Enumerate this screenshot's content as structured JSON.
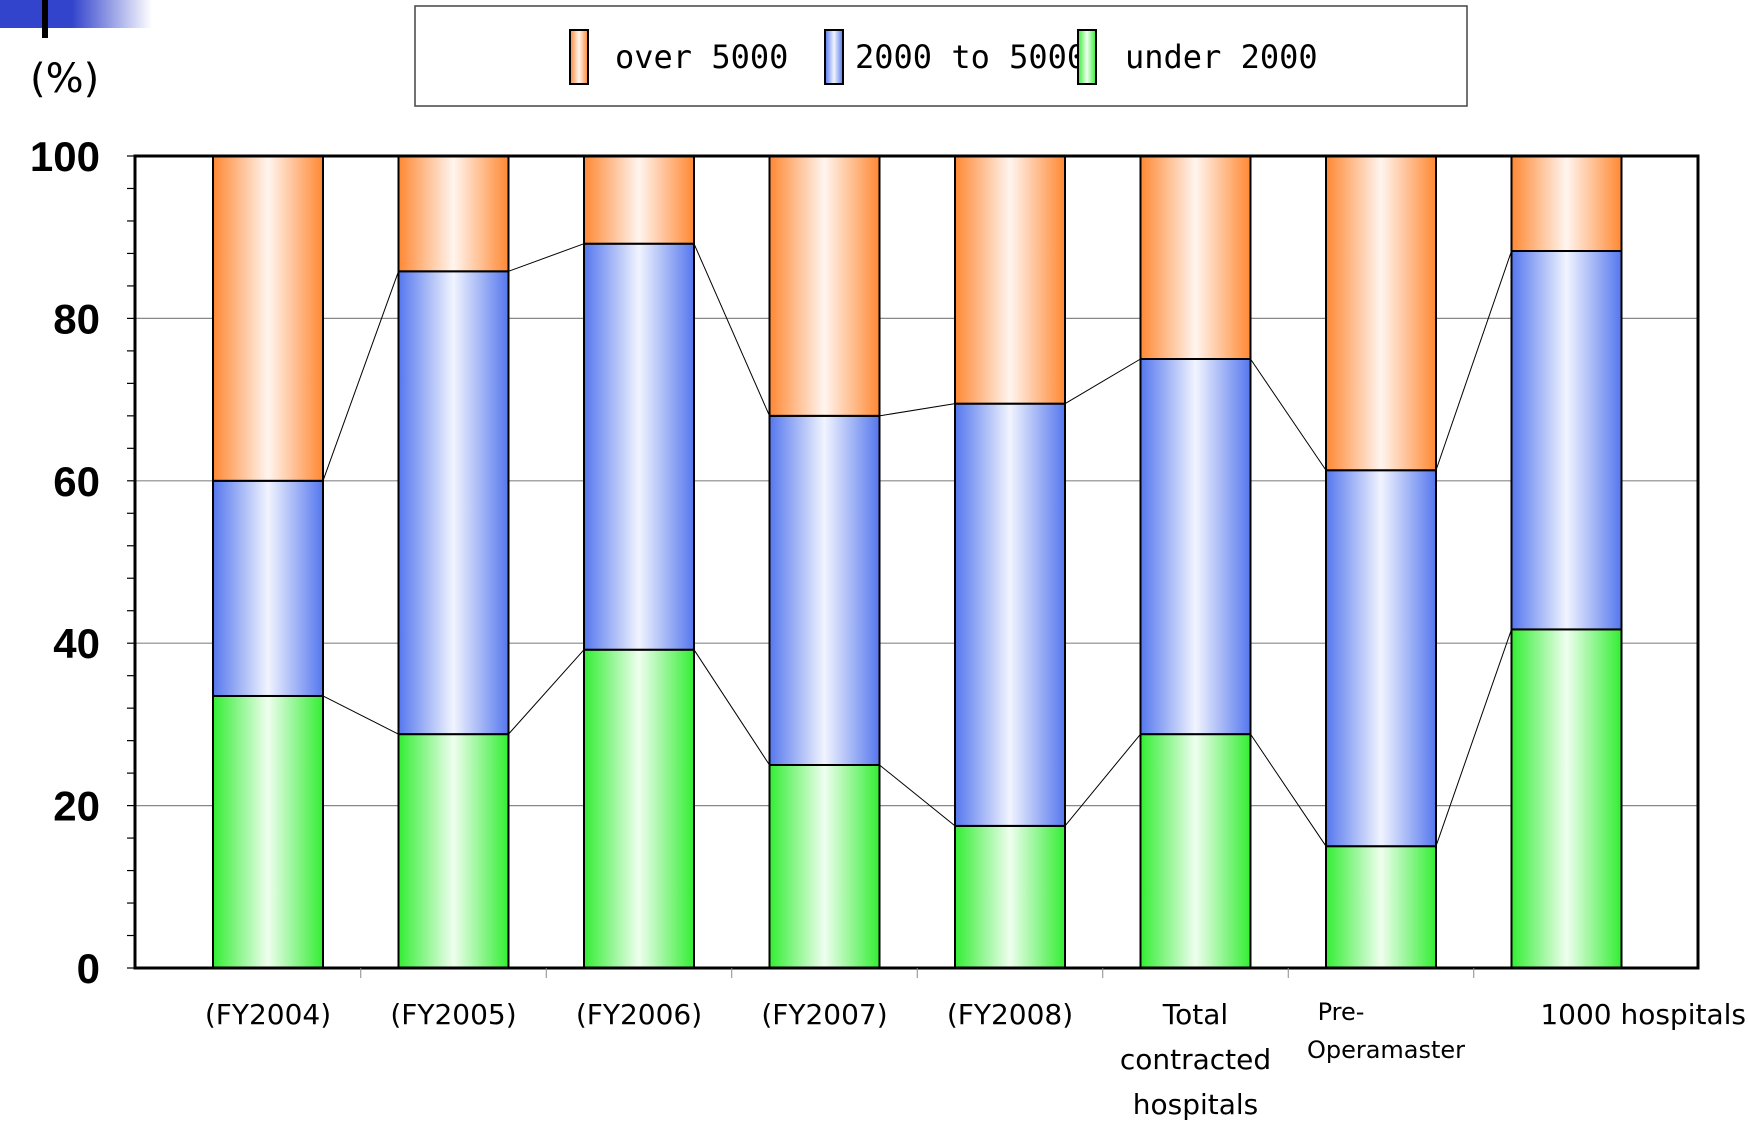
{
  "chart_data": {
    "type": "bar",
    "stacked": true,
    "percent": true,
    "y_unit": "(%)",
    "ylim": [
      0,
      100
    ],
    "yticks": [
      0,
      20,
      40,
      60,
      80,
      100
    ],
    "grid": true,
    "legend_position": "top",
    "categories": [
      "(FY2004)",
      "(FY2005)",
      "(FY2006)",
      "(FY2007)",
      "(FY2008)",
      "Total contracted hospitals",
      "Pre-Operamaster",
      "1000 hospitals"
    ],
    "category_lines": [
      [
        "(FY2004)"
      ],
      [
        "(FY2005)"
      ],
      [
        "(FY2006)"
      ],
      [
        "(FY2007)"
      ],
      [
        "(FY2008)"
      ],
      [
        "Total",
        "contracted",
        "hospitals"
      ],
      [
        "Pre-",
        "Operamaster"
      ],
      [
        "1000 hospitals"
      ]
    ],
    "series": [
      {
        "name": "under 2000",
        "color": "#33ee33",
        "values": [
          33.5,
          28.8,
          39.2,
          25.0,
          17.5,
          28.8,
          15.0,
          41.7
        ]
      },
      {
        "name": "2000 to 5000",
        "color": "#5577ee",
        "values": [
          26.5,
          57.0,
          50.0,
          43.0,
          52.0,
          46.2,
          46.3,
          46.6
        ]
      },
      {
        "name": "over 5000",
        "color": "#ff8833",
        "values": [
          40.0,
          14.2,
          10.8,
          32.0,
          30.5,
          25.0,
          38.7,
          11.7
        ]
      }
    ],
    "legend_order": [
      "over 5000",
      "2000 to 5000",
      "under 2000"
    ]
  }
}
